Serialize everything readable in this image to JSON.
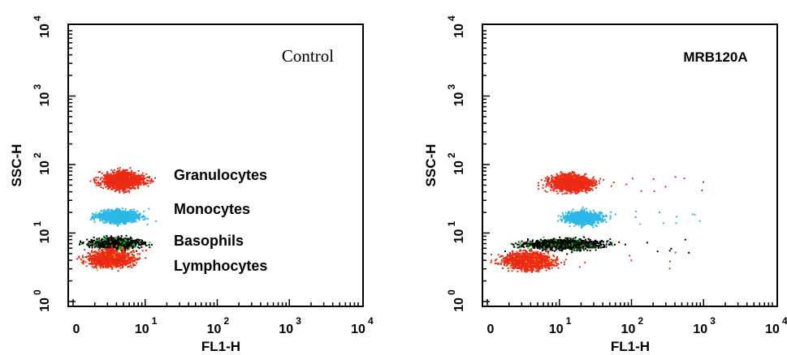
{
  "colors": {
    "red": "#ec2a14",
    "cyan": "#2ab8e8",
    "black": "#000000",
    "green": "#22c02a",
    "orange": "#f2a01c"
  },
  "chart_data": [
    {
      "type": "scatter",
      "title": "Control",
      "xlabel": "FL1-H",
      "ylabel": "SSC-H",
      "scale": "log",
      "xlim": [
        1,
        10000
      ],
      "ylim": [
        1,
        10000
      ],
      "x_ticks": [
        {
          "base": "0",
          "sup": ""
        },
        {
          "base": "10",
          "sup": "1"
        },
        {
          "base": "10",
          "sup": "2"
        },
        {
          "base": "10",
          "sup": "3"
        },
        {
          "base": "10",
          "sup": "4"
        }
      ],
      "y_ticks": [
        {
          "base": "10",
          "sup": "0"
        },
        {
          "base": "10",
          "sup": "1"
        },
        {
          "base": "10",
          "sup": "2"
        },
        {
          "base": "10",
          "sup": "3"
        },
        {
          "base": "10",
          "sup": "4"
        }
      ],
      "populations": [
        {
          "label": "Granulocytes",
          "color": "red",
          "x_center": 5,
          "x_range": [
            1.7,
            13
          ],
          "y_center": 60,
          "y_spread": 0.1
        },
        {
          "label": "Monocytes",
          "color": "cyan",
          "x_center": 5,
          "x_range": [
            1.6,
            11
          ],
          "y_center": 18,
          "y_spread": 0.07
        },
        {
          "label": "Basophils",
          "color": "black",
          "x_center": 4.5,
          "x_range": [
            1.2,
            12
          ],
          "y_center": 7.2,
          "y_spread": 0.06
        },
        {
          "label": "Lymphocytes",
          "color": "red",
          "x_center": 4.5,
          "x_range": [
            1.1,
            10
          ],
          "y_center": 4.3,
          "y_spread": 0.1
        }
      ]
    },
    {
      "type": "scatter",
      "title": "MRB120A",
      "xlabel": "FL1-H",
      "ylabel": "SSC-H",
      "scale": "log",
      "xlim": [
        1,
        10000
      ],
      "ylim": [
        1,
        10000
      ],
      "x_ticks": [
        {
          "base": "0",
          "sup": ""
        },
        {
          "base": "10",
          "sup": "1"
        },
        {
          "base": "10",
          "sup": "2"
        },
        {
          "base": "10",
          "sup": "3"
        },
        {
          "base": "10",
          "sup": "4"
        }
      ],
      "y_ticks": [
        {
          "base": "10",
          "sup": "0"
        },
        {
          "base": "10",
          "sup": "1"
        },
        {
          "base": "10",
          "sup": "2"
        },
        {
          "base": "10",
          "sup": "3"
        },
        {
          "base": "10",
          "sup": "4"
        }
      ],
      "populations": [
        {
          "label": "",
          "color": "red",
          "x_center": 14,
          "x_range": [
            5,
            40
          ],
          "y_center": 55,
          "y_spread": 0.1
        },
        {
          "label": "",
          "color": "cyan",
          "x_center": 22,
          "x_range": [
            9,
            50
          ],
          "y_center": 17,
          "y_spread": 0.07
        },
        {
          "label": "",
          "color": "black",
          "x_center": 15,
          "x_range": [
            1.5,
            80
          ],
          "y_center": 7,
          "y_spread": 0.06
        },
        {
          "label": "",
          "color": "red",
          "x_center": 3,
          "x_range": [
            1.1,
            12
          ],
          "y_center": 4,
          "y_spread": 0.1
        }
      ]
    }
  ]
}
